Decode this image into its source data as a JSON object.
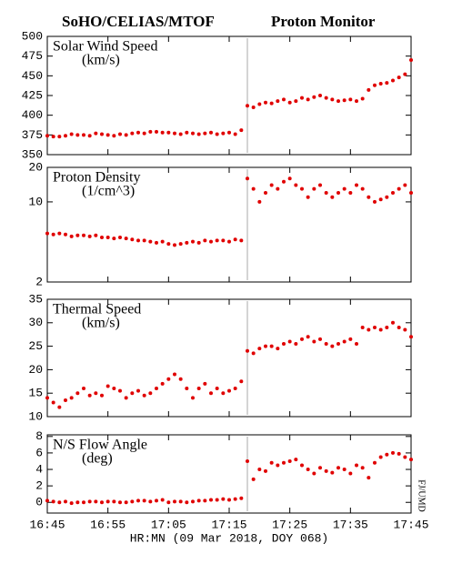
{
  "header": {
    "left": "SoHO/CELIAS/MTOF",
    "right": "Proton Monitor",
    "credit": "FJ/UMD"
  },
  "chart_data": [
    {
      "type": "scatter",
      "title": "Solar Wind Speed",
      "units": "(km/s)",
      "color": "#e00000",
      "x": [
        0,
        1,
        2,
        3,
        4,
        5,
        6,
        7,
        8,
        9,
        10,
        11,
        12,
        13,
        14,
        15,
        16,
        17,
        18,
        19,
        20,
        21,
        22,
        23,
        24,
        25,
        26,
        27,
        28,
        29,
        30,
        31,
        32,
        33,
        34,
        35,
        36,
        37,
        38,
        39,
        40,
        41,
        42,
        43,
        44,
        45,
        46,
        47,
        48,
        49,
        50,
        51,
        52,
        53,
        54,
        55,
        56,
        57,
        58,
        59,
        60
      ],
      "values": [
        374,
        373,
        373,
        374,
        376,
        375,
        375,
        374,
        377,
        376,
        375,
        374,
        376,
        375,
        377,
        378,
        377,
        379,
        379,
        378,
        378,
        377,
        376,
        378,
        377,
        376,
        377,
        378,
        376,
        377,
        378,
        376,
        381,
        412,
        410,
        414,
        416,
        415,
        418,
        420,
        416,
        418,
        422,
        420,
        423,
        425,
        422,
        420,
        418,
        419,
        420,
        418,
        421,
        432,
        438,
        440,
        441,
        444,
        448,
        452,
        470
      ],
      "ylim": [
        350,
        500
      ],
      "yticks": [
        350,
        375,
        400,
        425,
        450,
        475,
        500
      ],
      "xlim": [
        0,
        60
      ]
    },
    {
      "type": "scatter",
      "title": "Proton Density",
      "units": "(1/cm^3)",
      "color": "#e00000",
      "log": true,
      "x": [
        0,
        1,
        2,
        3,
        4,
        5,
        6,
        7,
        8,
        9,
        10,
        11,
        12,
        13,
        14,
        15,
        16,
        17,
        18,
        19,
        20,
        21,
        22,
        23,
        24,
        25,
        26,
        27,
        28,
        29,
        30,
        31,
        32,
        33,
        34,
        35,
        36,
        37,
        38,
        39,
        40,
        41,
        42,
        43,
        44,
        45,
        46,
        47,
        48,
        49,
        50,
        51,
        52,
        53,
        54,
        55,
        56,
        57,
        58,
        59,
        60
      ],
      "values": [
        5.3,
        5.2,
        5.3,
        5.2,
        5.0,
        5.1,
        5.1,
        5.0,
        5.1,
        4.9,
        4.9,
        4.8,
        4.9,
        4.8,
        4.7,
        4.6,
        4.6,
        4.5,
        4.4,
        4.5,
        4.3,
        4.2,
        4.3,
        4.4,
        4.5,
        4.4,
        4.6,
        4.5,
        4.6,
        4.6,
        4.5,
        4.7,
        4.6,
        16,
        13,
        10,
        12,
        14,
        13,
        15,
        16,
        14,
        13,
        11,
        13,
        14,
        12,
        11,
        12,
        13,
        12,
        14,
        13,
        11,
        10,
        10.5,
        11,
        12,
        13,
        14,
        12
      ],
      "ylim": [
        2,
        20
      ],
      "yticks": [
        2,
        10,
        20
      ],
      "xlim": [
        0,
        60
      ]
    },
    {
      "type": "scatter",
      "title": "Thermal Speed",
      "units": "(km/s)",
      "color": "#e00000",
      "x": [
        0,
        1,
        2,
        3,
        4,
        5,
        6,
        7,
        8,
        9,
        10,
        11,
        12,
        13,
        14,
        15,
        16,
        17,
        18,
        19,
        20,
        21,
        22,
        23,
        24,
        25,
        26,
        27,
        28,
        29,
        30,
        31,
        32,
        33,
        34,
        35,
        36,
        37,
        38,
        39,
        40,
        41,
        42,
        43,
        44,
        45,
        46,
        47,
        48,
        49,
        50,
        51,
        52,
        53,
        54,
        55,
        56,
        57,
        58,
        59,
        60
      ],
      "values": [
        14,
        13,
        12,
        13.5,
        14,
        15,
        16,
        14.5,
        15,
        14.5,
        16.5,
        16,
        15.5,
        14,
        15,
        15.5,
        14.5,
        15,
        16,
        17,
        18,
        19,
        18,
        16,
        14,
        16,
        17,
        15,
        16,
        15,
        15.5,
        16,
        17.5,
        24,
        23.5,
        24.5,
        25,
        25,
        24.5,
        25.5,
        26,
        25.5,
        26.5,
        27,
        26,
        26.5,
        25.5,
        25,
        25.5,
        26,
        26.5,
        25.5,
        29,
        28.5,
        29,
        28.5,
        29,
        30,
        29,
        28.5,
        27
      ],
      "ylim": [
        10,
        35
      ],
      "yticks": [
        10,
        15,
        20,
        25,
        30,
        35
      ],
      "xlim": [
        0,
        60
      ]
    },
    {
      "type": "scatter",
      "title": "N/S Flow Angle",
      "units": "(deg)",
      "color": "#e00000",
      "x": [
        0,
        1,
        2,
        3,
        4,
        5,
        6,
        7,
        8,
        9,
        10,
        11,
        12,
        13,
        14,
        15,
        16,
        17,
        18,
        19,
        20,
        21,
        22,
        23,
        24,
        25,
        26,
        27,
        28,
        29,
        30,
        31,
        32,
        33,
        34,
        35,
        36,
        37,
        38,
        39,
        40,
        41,
        42,
        43,
        44,
        45,
        46,
        47,
        48,
        49,
        50,
        51,
        52,
        53,
        54,
        55,
        56,
        57,
        58,
        59,
        60
      ],
      "values": [
        0.2,
        0.1,
        0.0,
        0.1,
        -0.1,
        0.0,
        0.0,
        0.1,
        0.1,
        0.0,
        0.1,
        0.1,
        0.0,
        0.0,
        0.1,
        0.2,
        0.2,
        0.1,
        0.2,
        0.3,
        0.0,
        0.1,
        0.1,
        0.0,
        0.1,
        0.2,
        0.2,
        0.3,
        0.3,
        0.4,
        0.3,
        0.4,
        0.5,
        5.0,
        2.8,
        4.0,
        3.8,
        4.8,
        4.5,
        4.8,
        5.0,
        5.2,
        4.5,
        4.0,
        3.5,
        4.2,
        3.8,
        3.6,
        4.2,
        4.0,
        3.5,
        4.5,
        4.2,
        3.0,
        4.8,
        5.5,
        5.8,
        6.0,
        5.9,
        5.5,
        5.2
      ],
      "ylim": [
        -1.3,
        8.2
      ],
      "yticks": [
        0,
        2,
        4,
        6,
        8
      ],
      "xlim": [
        0,
        60
      ],
      "xticks": [
        {
          "value": 0,
          "label": "16:45"
        },
        {
          "value": 10,
          "label": "16:55"
        },
        {
          "value": 20,
          "label": "17:05"
        },
        {
          "value": 30,
          "label": "17:15"
        },
        {
          "value": 40,
          "label": "17:25"
        },
        {
          "value": 50,
          "label": "17:35"
        },
        {
          "value": 60,
          "label": "17:45"
        }
      ],
      "xlabel": "HR:MN (09 Mar 2018, DOY 068)"
    }
  ]
}
